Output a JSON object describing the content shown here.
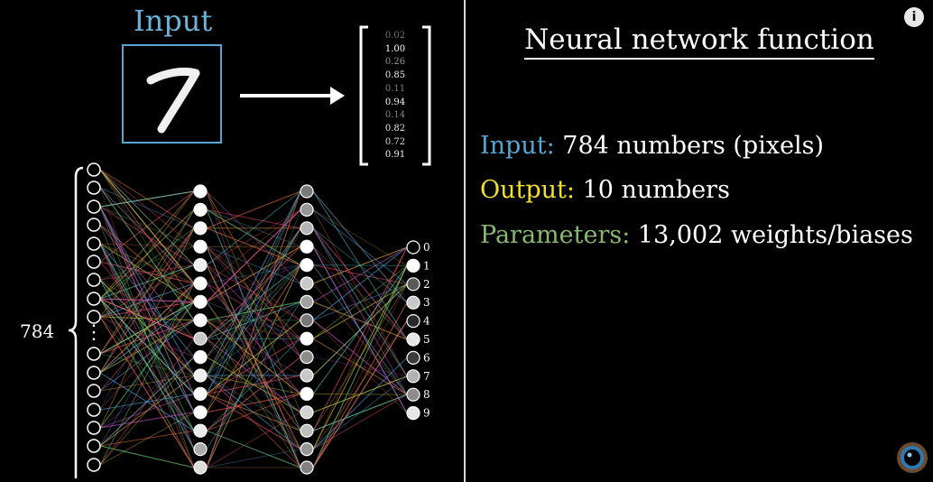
{
  "left_panel": {
    "input_title": "Input",
    "vector_values": [
      "0.02",
      "1.00",
      "0.26",
      "0.85",
      "0.11",
      "0.94",
      "0.14",
      "0.82",
      "0.72",
      "0.91"
    ],
    "input_layer_count": "784",
    "input_layer_ellipsis": "⋮",
    "output_labels": [
      "0",
      "1",
      "2",
      "3",
      "4",
      "5",
      "6",
      "7",
      "8",
      "9"
    ]
  },
  "right_panel": {
    "heading": "Neural network function",
    "input_label": "Input:",
    "input_text": "784 numbers (pixels)",
    "output_label": "Output:",
    "output_text": "10 numbers",
    "params_label": "Parameters:",
    "params_text": "13,002 weights/biases"
  },
  "icons": {
    "info": "info-icon",
    "logo": "3blue1brown-logo-icon"
  },
  "colors": {
    "input_accent": "#58a6d0",
    "output_accent": "#f2e028",
    "params_accent": "#88b870",
    "divider": "#d8d8d8"
  }
}
